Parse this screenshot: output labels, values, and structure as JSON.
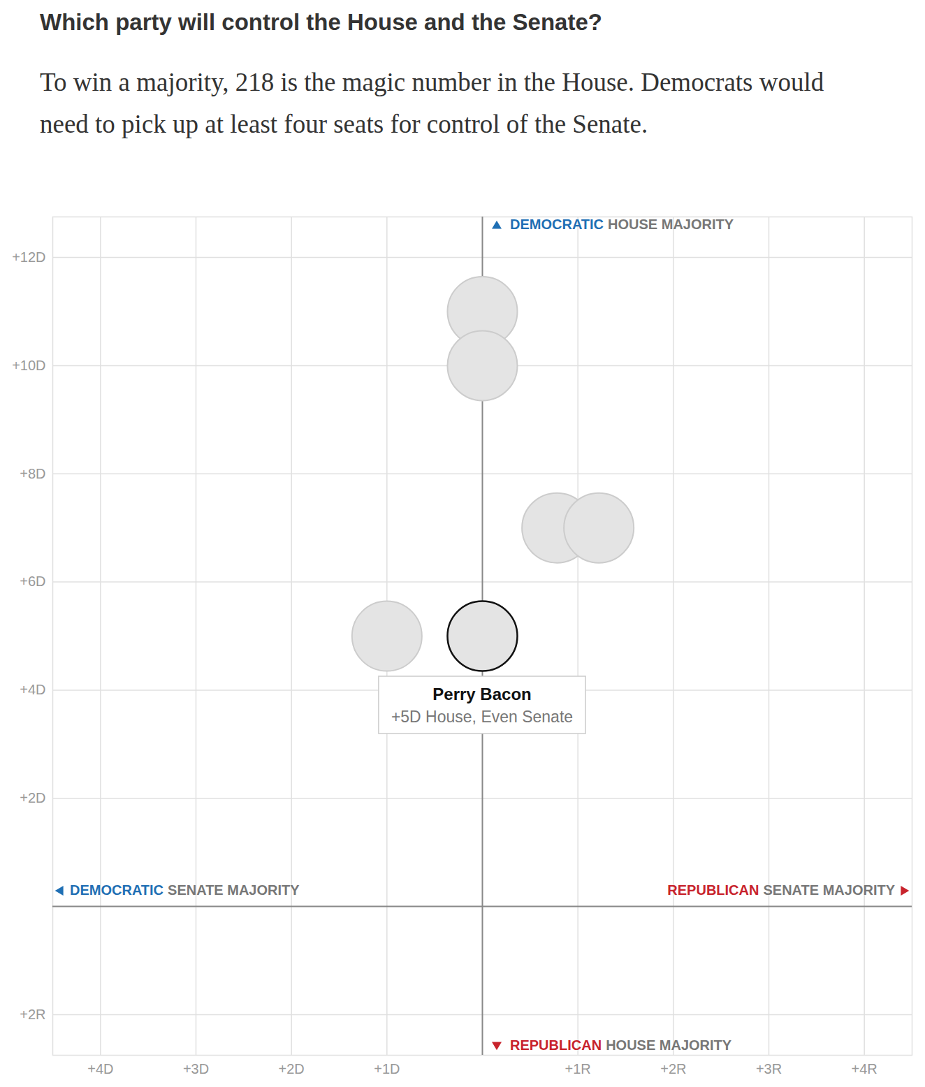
{
  "chart_data": {
    "type": "scatter",
    "title": "Which party will control the House and the Senate?",
    "subtitle": "To win a majority, 218 is the magic number in the House. Democrats would need to pick up at least four seats for control of the Senate.",
    "x": [
      0,
      0,
      1,
      1,
      -1,
      0
    ],
    "values": [
      11,
      10,
      7,
      7,
      5,
      5
    ],
    "marker": "circle",
    "xlim": [
      -4.5,
      4.5
    ],
    "xticks": [
      {
        "value": -4,
        "label": "+4D"
      },
      {
        "value": -3,
        "label": "+3D"
      },
      {
        "value": -2,
        "label": "+2D"
      },
      {
        "value": -1,
        "label": "+1D"
      },
      {
        "value": 1,
        "label": "+1R"
      },
      {
        "value": 2,
        "label": "+2R"
      },
      {
        "value": 3,
        "label": "+3R"
      },
      {
        "value": 4,
        "label": "+4R"
      }
    ],
    "ylim": [
      -2.75,
      12.75
    ],
    "yticks": [
      {
        "value": 12,
        "label": "+12D"
      },
      {
        "value": 10,
        "label": "+10D"
      },
      {
        "value": 8,
        "label": "+8D"
      },
      {
        "value": 6,
        "label": "+6D"
      },
      {
        "value": 4,
        "label": "+4D"
      },
      {
        "value": 2,
        "label": "+2D"
      },
      {
        "value": -2,
        "label": "+2R"
      }
    ],
    "grid": true,
    "quadrant_lines": {
      "x": 0,
      "y": 0
    },
    "axis_labels": {
      "top": {
        "party": "DEMOCRATIC",
        "text": "HOUSE MAJORITY",
        "color": "#1f6fb4"
      },
      "bottom": {
        "party": "REPUBLICAN",
        "text": "HOUSE MAJORITY",
        "color": "#c8232c"
      },
      "left": {
        "party": "DEMOCRATIC",
        "text": "SENATE MAJORITY",
        "color": "#1f6fb4"
      },
      "right": {
        "party": "REPUBLICAN",
        "text": "SENATE MAJORITY",
        "color": "#c8232c"
      }
    },
    "highlight": {
      "name": "Perry Bacon",
      "x": 0,
      "y": 5,
      "label": "+5D House, Even Senate"
    }
  }
}
